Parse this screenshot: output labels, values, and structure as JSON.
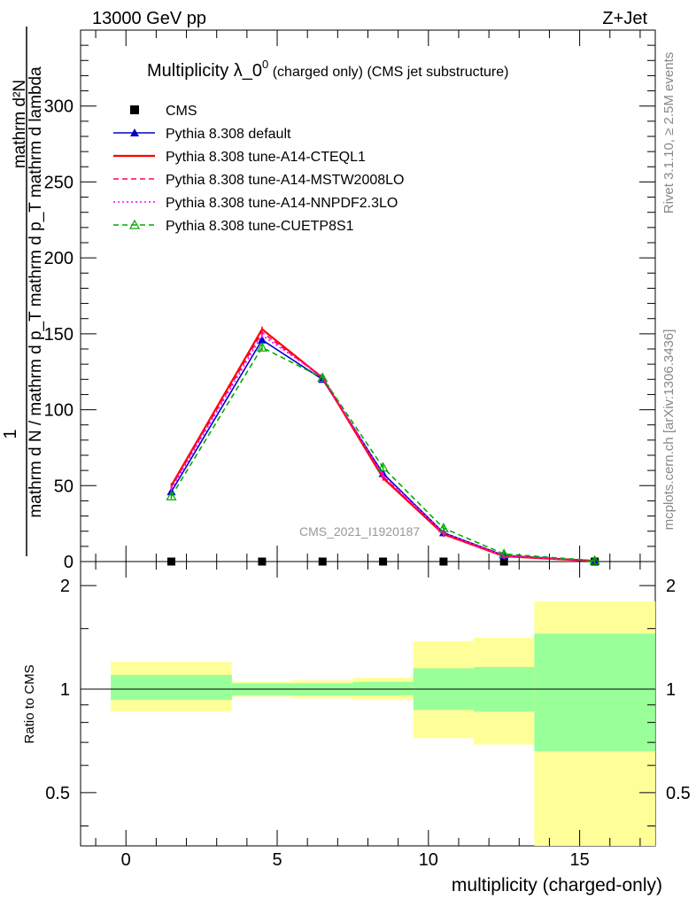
{
  "header": {
    "left": "13000 GeV pp",
    "right": "Z+Jet"
  },
  "side_labels": {
    "rivet": "Rivet 3.1.10, ≥ 2.5M events",
    "mcplots": "mcplots.cern.ch [arXiv:1306.3436]"
  },
  "chart_data": [
    {
      "type": "line",
      "title_main": "Multiplicity λ_0",
      "title_sup": "0",
      "title_rest": " (charged only) (CMS jet substructure)",
      "ylabel_num": "mathrm d²N",
      "ylabel_den": "mathrm d N / mathrm d p_T mathrm d p_T mathrm d lambda",
      "ylabel_one": "1",
      "ylim": [
        0,
        350
      ],
      "yticks": [
        0,
        50,
        100,
        150,
        200,
        250,
        300
      ],
      "xlim": [
        -1.5,
        17.5
      ],
      "watermark": "CMS_2021_I1920187",
      "x": [
        1.5,
        4.5,
        6.5,
        8.5,
        10.5,
        12.5,
        15.5
      ],
      "series": [
        {
          "name": "CMS",
          "color": "#000000",
          "style": "points",
          "values": [
            0,
            0,
            0,
            0,
            0,
            0,
            0
          ]
        },
        {
          "name": "Pythia 8.308 default",
          "color": "#0000cc",
          "style": "solid-triangle",
          "values": [
            46,
            146,
            120,
            58,
            19,
            4,
            0.5
          ]
        },
        {
          "name": "Pythia 8.308 tune-A14-CTEQL1",
          "color": "#ff0000",
          "style": "solid",
          "values": [
            50,
            153,
            121,
            55,
            18,
            3.5,
            0.4
          ]
        },
        {
          "name": "Pythia 8.308 tune-A14-MSTW2008LO",
          "color": "#ff0066",
          "style": "dashed",
          "values": [
            49,
            151,
            121,
            56,
            18,
            3.6,
            0.4
          ]
        },
        {
          "name": "Pythia 8.308 tune-A14-NNPDF2.3LO",
          "color": "#ff00ff",
          "style": "dotted",
          "values": [
            48,
            149,
            122,
            57,
            19,
            3.8,
            0.5
          ]
        },
        {
          "name": "Pythia 8.308 tune-CUETP8S1",
          "color": "#00aa00",
          "style": "dashed-open-triangle",
          "values": [
            43,
            141,
            121,
            62,
            22,
            5,
            0.6
          ]
        }
      ]
    },
    {
      "type": "ratio",
      "ylabel": "Ratio to CMS",
      "xlabel": "multiplicity (charged-only)",
      "ylim": [
        0.35,
        2.35
      ],
      "yticks": [
        0.5,
        1,
        2
      ],
      "ytick_labels": [
        "0.5",
        "1",
        "2"
      ],
      "xticks": [
        0,
        5,
        10,
        15
      ],
      "bins": [
        {
          "lo": -0.5,
          "hi": 3.5,
          "inner": [
            0.93,
            1.1
          ],
          "outer": [
            0.86,
            1.2
          ]
        },
        {
          "lo": 3.5,
          "hi": 5.5,
          "inner": [
            0.96,
            1.04
          ],
          "outer": [
            0.95,
            1.05
          ]
        },
        {
          "lo": 5.5,
          "hi": 7.5,
          "inner": [
            0.96,
            1.04
          ],
          "outer": [
            0.94,
            1.06
          ]
        },
        {
          "lo": 7.5,
          "hi": 9.5,
          "inner": [
            0.96,
            1.05
          ],
          "outer": [
            0.93,
            1.08
          ]
        },
        {
          "lo": 9.5,
          "hi": 11.5,
          "inner": [
            0.87,
            1.15
          ],
          "outer": [
            0.72,
            1.38
          ]
        },
        {
          "lo": 11.5,
          "hi": 13.5,
          "inner": [
            0.86,
            1.16
          ],
          "outer": [
            0.69,
            1.41
          ]
        },
        {
          "lo": 13.5,
          "hi": 17.5,
          "inner": [
            0.66,
            1.45
          ],
          "outer": [
            0.35,
            1.8
          ]
        }
      ],
      "colors": {
        "inner": "#99ff99",
        "outer": "#ffff99"
      }
    }
  ]
}
